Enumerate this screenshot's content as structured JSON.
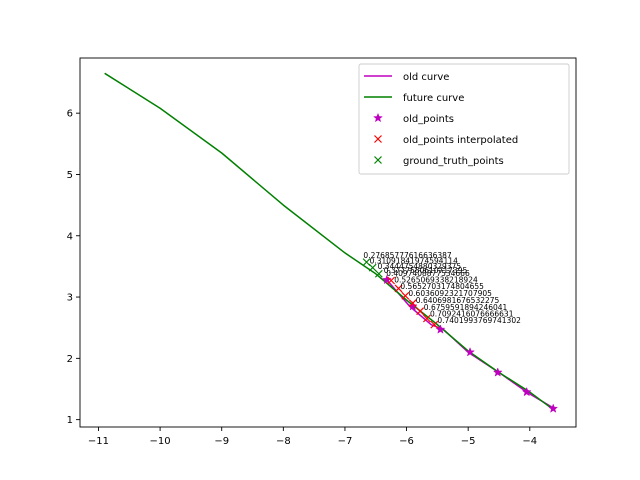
{
  "chart_data": {
    "type": "line",
    "title": "",
    "xlabel": "",
    "ylabel": "",
    "xlim": [
      -11.3,
      -3.25
    ],
    "ylim": [
      0.88,
      6.9
    ],
    "xticks": [
      -11,
      -10,
      -9,
      -8,
      -7,
      -6,
      -5,
      -4
    ],
    "yticks": [
      1,
      2,
      3,
      4,
      5,
      6
    ],
    "grid": false,
    "legend_position": "top-right",
    "colors": {
      "old_curve": "#bf00bf",
      "future_curve": "#008000",
      "old_points": "#bf00bf",
      "interpolated": "#ff0000",
      "ground_truth": "#008000"
    },
    "series": [
      {
        "name": "old curve",
        "kind": "line",
        "x": [
          -6.32,
          -5.95,
          -5.6,
          -5.4,
          -5.0,
          -4.5,
          -4.05,
          -3.6
        ],
        "y": [
          3.28,
          2.85,
          2.55,
          2.47,
          2.1,
          1.77,
          1.45,
          1.18
        ]
      },
      {
        "name": "future curve",
        "kind": "line",
        "x": [
          -10.9,
          -10.0,
          -9.0,
          -8.0,
          -7.0,
          -6.5,
          -6.0,
          -5.5,
          -5.0,
          -4.5,
          -4.0,
          -3.6
        ],
        "y": [
          6.65,
          6.08,
          5.35,
          4.5,
          3.72,
          3.38,
          2.95,
          2.55,
          2.12,
          1.77,
          1.45,
          1.15
        ]
      },
      {
        "name": "old_points",
        "kind": "marker",
        "marker": "star",
        "x": [
          -6.32,
          -5.9,
          -5.45,
          -4.97,
          -4.52,
          -4.05,
          -3.62
        ],
        "y": [
          3.28,
          2.85,
          2.47,
          2.1,
          1.77,
          1.45,
          1.18
        ]
      },
      {
        "name": "old_points interpolated",
        "kind": "marker",
        "marker": "x",
        "x": [
          -6.25,
          -6.13,
          -6.02,
          -5.9,
          -5.78,
          -5.67,
          -5.55
        ],
        "y": [
          3.27,
          3.14,
          3.02,
          2.9,
          2.77,
          2.65,
          2.55
        ]
      },
      {
        "name": "ground_truth_points",
        "kind": "marker",
        "marker": "x",
        "x": [
          -6.65,
          -6.55,
          -6.45
        ],
        "y": [
          3.57,
          3.48,
          3.38
        ]
      }
    ],
    "annotations": [
      {
        "text": "0.27685777616636387",
        "x": -6.7,
        "y": 3.64
      },
      {
        "text": "0.31091841974594114",
        "x": -6.6,
        "y": 3.55
      },
      {
        "text": "0.3444754880329375",
        "x": -6.47,
        "y": 3.46
      },
      {
        "text": "0.3777580610717395",
        "x": -6.37,
        "y": 3.39
      },
      {
        "text": "0.4097408877534666",
        "x": -6.33,
        "y": 3.34
      },
      {
        "text": "0.5265069338218924",
        "x": -6.2,
        "y": 3.24
      },
      {
        "text": "0.5652703174804655",
        "x": -6.1,
        "y": 3.13
      },
      {
        "text": "0.6036092321707905",
        "x": -5.97,
        "y": 3.02
      },
      {
        "text": "0.6406981676532275",
        "x": -5.85,
        "y": 2.9
      },
      {
        "text": "0.6759591894246041",
        "x": -5.72,
        "y": 2.79
      },
      {
        "text": "0.7092416076666631",
        "x": -5.62,
        "y": 2.68
      },
      {
        "text": "0.7401993769741302",
        "x": -5.5,
        "y": 2.58
      }
    ]
  }
}
